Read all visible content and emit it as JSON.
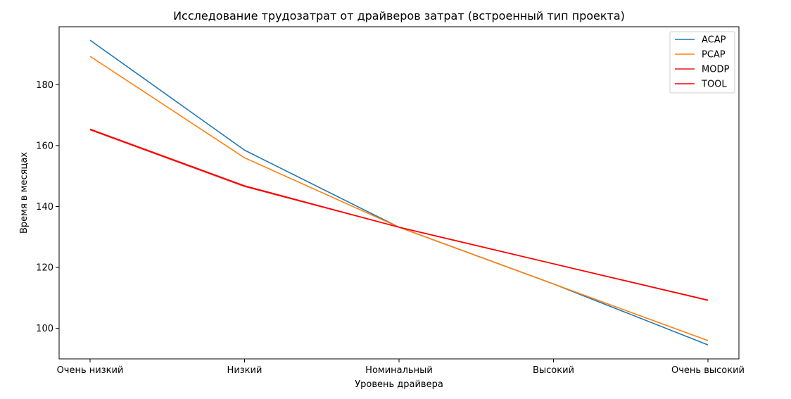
{
  "chart_data": {
    "type": "line",
    "title": "Исследование трудозатрат от драйверов затрат (встроенный тип проекта)",
    "xlabel": "Уровень драйвера",
    "ylabel": "Время в месяцах",
    "categories": [
      "Очень низкий",
      "Низкий",
      "Номинальный",
      "Высокий",
      "Очень высокий"
    ],
    "yticks": [
      100,
      120,
      140,
      160,
      180
    ],
    "ylim": [
      90,
      199
    ],
    "grid": false,
    "legend_position": "top-right",
    "series": [
      {
        "name": "ACAP",
        "color": "#1f77b4",
        "values": [
          194.6,
          158.5,
          133.2,
          114.6,
          94.6
        ]
      },
      {
        "name": "PCAP",
        "color": "#ff7f0e",
        "values": [
          189.3,
          156.0,
          133.2,
          114.6,
          96.0
        ]
      },
      {
        "name": "MODP",
        "color": "#e31a1c",
        "values": [
          165.2,
          146.6,
          133.2,
          121.2,
          109.2
        ]
      },
      {
        "name": "TOOL",
        "color": "#ff0000",
        "values": [
          165.4,
          146.8,
          133.2,
          121.2,
          109.3
        ]
      }
    ]
  }
}
